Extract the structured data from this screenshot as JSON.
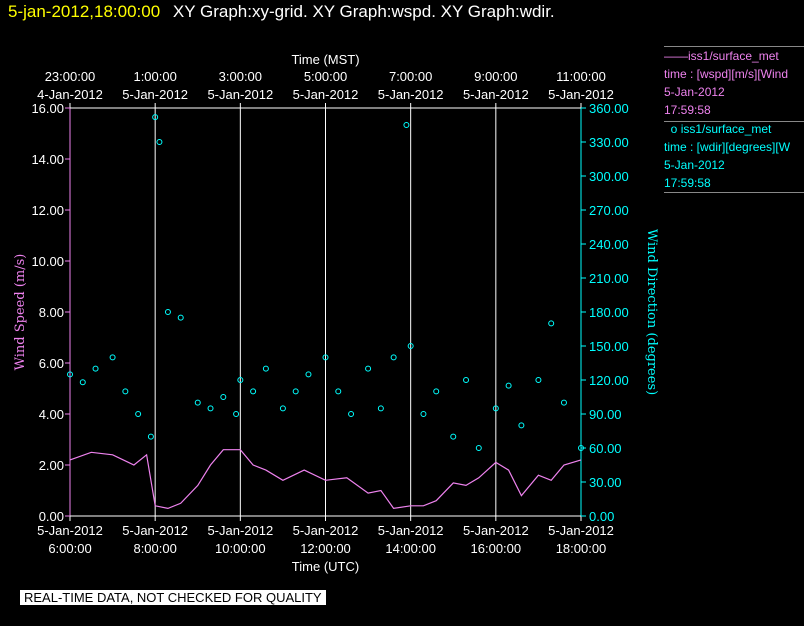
{
  "title": {
    "time": "5-jan-2012,18:00:00",
    "graphs": "XY Graph:xy-grid.  XY Graph:wspd.  XY Graph:wdir."
  },
  "legend": {
    "wspd": {
      "title": "iss1/surface_met",
      "line2": "time : [wspd][m/s][Wind",
      "date": "5-Jan-2012",
      "time": "17:59:58"
    },
    "wdir": {
      "title": "iss1/surface_met",
      "line2": "time : [wdir][degrees][W",
      "date": "5-Jan-2012",
      "time": "17:59:58"
    }
  },
  "footer": "REAL-TIME DATA, NOT CHECKED FOR QUALITY",
  "colors": {
    "wspd": "#ee82ee",
    "wdir": "#00ffff",
    "axis_left": "#ee82ee",
    "axis_right": "#00ffff",
    "grid": "#ffffff",
    "background": "#000000"
  },
  "chart_data": {
    "type": "line",
    "xlabel_top": "Time (MST)",
    "xlabel_bottom": "Time (UTC)",
    "ylabel_left": "Wind Speed (m/s)",
    "ylabel_right": "Wind Direction (degrees)",
    "xlim_utc_hours": [
      6.0,
      18.0
    ],
    "ylim_left": [
      0,
      16
    ],
    "ylim_right": [
      0,
      360
    ],
    "grid": "vertical",
    "x_ticks_bottom": [
      {
        "hour": 6,
        "date": "5-Jan-2012",
        "time": "6:00:00"
      },
      {
        "hour": 8,
        "date": "5-Jan-2012",
        "time": "8:00:00"
      },
      {
        "hour": 10,
        "date": "5-Jan-2012",
        "time": "10:00:00"
      },
      {
        "hour": 12,
        "date": "5-Jan-2012",
        "time": "12:00:00"
      },
      {
        "hour": 14,
        "date": "5-Jan-2012",
        "time": "14:00:00"
      },
      {
        "hour": 16,
        "date": "5-Jan-2012",
        "time": "16:00:00"
      },
      {
        "hour": 18,
        "date": "5-Jan-2012",
        "time": "18:00:00"
      }
    ],
    "x_ticks_top": [
      {
        "hour": 6,
        "time": "23:00:00",
        "date": "4-Jan-2012"
      },
      {
        "hour": 8,
        "time": "1:00:00",
        "date": "5-Jan-2012"
      },
      {
        "hour": 10,
        "time": "3:00:00",
        "date": "5-Jan-2012"
      },
      {
        "hour": 12,
        "time": "5:00:00",
        "date": "5-Jan-2012"
      },
      {
        "hour": 14,
        "time": "7:00:00",
        "date": "5-Jan-2012"
      },
      {
        "hour": 16,
        "time": "9:00:00",
        "date": "5-Jan-2012"
      },
      {
        "hour": 18,
        "time": "11:00:00",
        "date": "5-Jan-2012"
      }
    ],
    "y_ticks_left": [
      "0.00",
      "2.00",
      "4.00",
      "6.00",
      "8.00",
      "10.00",
      "12.00",
      "14.00",
      "16.00"
    ],
    "y_ticks_right": [
      "0.00",
      "30.00",
      "60.00",
      "90.00",
      "120.00",
      "150.00",
      "180.00",
      "210.00",
      "240.00",
      "270.00",
      "300.00",
      "330.00",
      "360.00"
    ],
    "series": [
      {
        "name": "iss1/surface_met time : [wspd][m/s]",
        "style": "line",
        "x": [
          6.0,
          6.5,
          7.0,
          7.5,
          7.8,
          8.0,
          8.3,
          8.6,
          9.0,
          9.3,
          9.6,
          10.0,
          10.3,
          10.6,
          11.0,
          11.5,
          12.0,
          12.5,
          13.0,
          13.3,
          13.6,
          14.0,
          14.3,
          14.6,
          15.0,
          15.3,
          15.6,
          16.0,
          16.3,
          16.6,
          17.0,
          17.3,
          17.6,
          18.0
        ],
        "y": [
          2.2,
          2.5,
          2.4,
          2.0,
          2.4,
          0.4,
          0.3,
          0.5,
          1.2,
          2.0,
          2.6,
          2.6,
          2.0,
          1.8,
          1.4,
          1.8,
          1.4,
          1.5,
          0.9,
          1.0,
          0.3,
          0.4,
          0.4,
          0.6,
          1.3,
          1.2,
          1.5,
          2.1,
          1.8,
          0.8,
          1.6,
          1.4,
          2.0,
          2.2
        ]
      },
      {
        "name": "iss1/surface_met time : [wdir][degrees]",
        "style": "scatter",
        "x": [
          6.0,
          6.3,
          6.6,
          7.0,
          7.3,
          7.6,
          7.9,
          8.0,
          8.1,
          8.3,
          8.6,
          9.0,
          9.3,
          9.6,
          9.9,
          10.0,
          10.3,
          10.6,
          11.0,
          11.3,
          11.6,
          12.0,
          12.3,
          12.6,
          13.0,
          13.3,
          13.6,
          13.9,
          14.0,
          14.3,
          14.6,
          15.0,
          15.3,
          15.6,
          16.0,
          16.3,
          16.6,
          17.0,
          17.3,
          17.6,
          18.0
        ],
        "y": [
          125,
          118,
          130,
          140,
          110,
          90,
          70,
          352,
          330,
          180,
          175,
          100,
          95,
          105,
          90,
          120,
          110,
          130,
          95,
          110,
          125,
          140,
          110,
          90,
          130,
          95,
          140,
          345,
          150,
          90,
          110,
          70,
          120,
          60,
          95,
          115,
          80,
          120,
          170,
          100,
          60
        ]
      }
    ]
  }
}
